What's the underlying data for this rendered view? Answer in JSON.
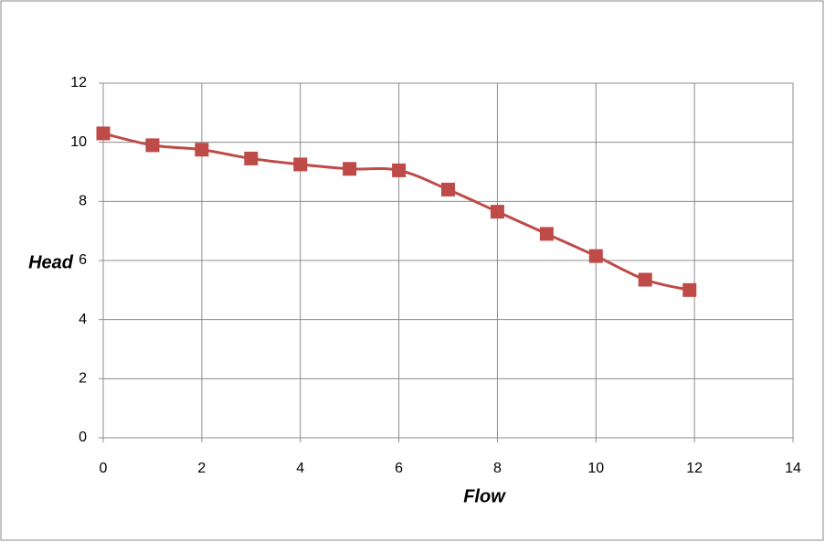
{
  "chart_data": {
    "type": "line",
    "x_label": "Flow",
    "y_label": "Head",
    "x": [
      0,
      1,
      2,
      3,
      4,
      5,
      6,
      7,
      8,
      9,
      10,
      11,
      11.9
    ],
    "series": [
      {
        "color": "#be4b48",
        "values": [
          10.3,
          9.9,
          9.75,
          9.45,
          9.25,
          9.1,
          9.05,
          8.4,
          7.65,
          6.9,
          6.15,
          5.35,
          5.0
        ]
      }
    ],
    "xlim": [
      0,
      14
    ],
    "xticks": [
      0,
      2,
      4,
      6,
      8,
      10,
      12,
      14
    ],
    "ylim": [
      0,
      12
    ],
    "yticks": [
      0,
      2,
      4,
      6,
      8,
      10,
      12
    ],
    "grid": true
  }
}
